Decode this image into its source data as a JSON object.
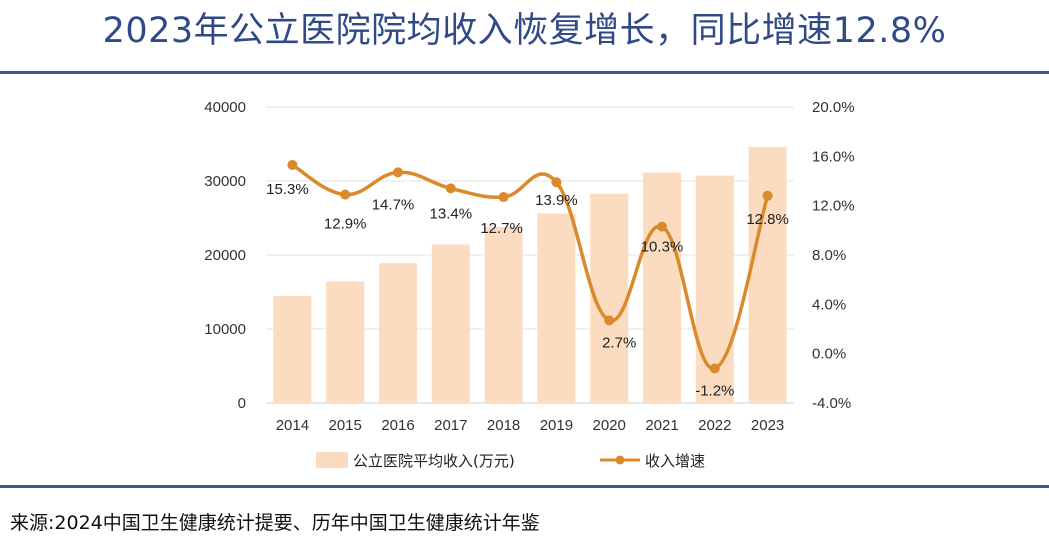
{
  "title": "2023年公立医院院均收入恢复增长，同比增速12.8%",
  "source": "来源:2024中国卫生健康统计提要、历年中国卫生健康统计年鉴",
  "colors": {
    "title": "#2f4a86",
    "rule": "#3d5592",
    "bar": "#fbdcc0",
    "line": "#d98a2b",
    "grid": "#e3e3e3"
  },
  "chart_data": {
    "type": "bar+line",
    "categories": [
      "2014",
      "2015",
      "2016",
      "2017",
      "2018",
      "2019",
      "2020",
      "2021",
      "2022",
      "2023"
    ],
    "series": [
      {
        "name": "公立医院平均收入(万元)",
        "type": "bar",
        "axis": "left",
        "values": [
          14470,
          16400,
          18880,
          21440,
          23800,
          25600,
          28270,
          31150,
          30740,
          34600
        ]
      },
      {
        "name": "收入增速",
        "type": "line",
        "axis": "right",
        "values": [
          15.3,
          12.9,
          14.7,
          13.4,
          12.7,
          13.9,
          2.7,
          10.3,
          -1.2,
          12.8
        ],
        "labels": [
          "15.3%",
          "12.9%",
          "14.7%",
          "13.4%",
          "12.7%",
          "13.9%",
          "2.7%",
          "10.3%",
          "-1.2%",
          "12.8%"
        ]
      }
    ],
    "left_axis": {
      "range": [
        0,
        40000
      ],
      "ticks": [
        "0",
        "10000",
        "20000",
        "30000",
        "40000"
      ],
      "tick_values": [
        0,
        10000,
        20000,
        30000,
        40000
      ]
    },
    "right_axis": {
      "range": [
        -4,
        20
      ],
      "ticks": [
        "-4.0%",
        "0.0%",
        "4.0%",
        "8.0%",
        "12.0%",
        "16.0%",
        "20.0%"
      ],
      "tick_values": [
        -4,
        0,
        4,
        8,
        12,
        16,
        20
      ]
    },
    "grid": true,
    "legend": {
      "position": "bottom",
      "items": [
        "公立医院平均收入(万元)",
        "收入增速"
      ]
    }
  }
}
